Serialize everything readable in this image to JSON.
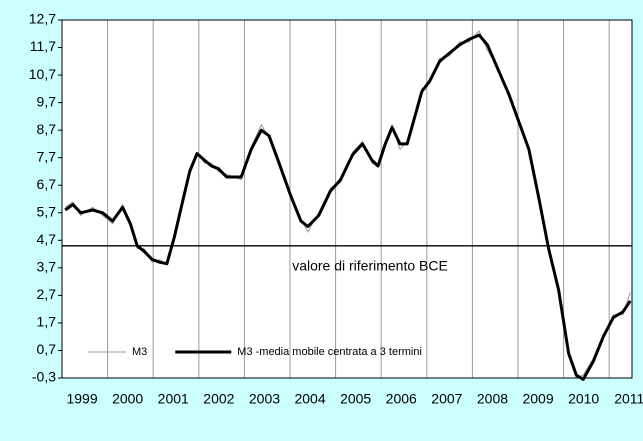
{
  "chart_data": {
    "type": "line",
    "xlim": [
      1999,
      2011.5
    ],
    "xticks": [
      1999,
      2000,
      2001,
      2002,
      2003,
      2004,
      2005,
      2006,
      2007,
      2008,
      2009,
      2010,
      2011
    ],
    "ylim": [
      -0.3,
      12.7
    ],
    "yticks": [
      {
        "value": -0.3,
        "label": "-0,3"
      },
      {
        "value": 0.7,
        "label": "0,7"
      },
      {
        "value": 1.7,
        "label": "1,7"
      },
      {
        "value": 2.7,
        "label": "2,7"
      },
      {
        "value": 3.7,
        "label": "3,7"
      },
      {
        "value": 4.7,
        "label": "4,7"
      },
      {
        "value": 5.7,
        "label": "5,7"
      },
      {
        "value": 6.7,
        "label": "6,7"
      },
      {
        "value": 7.7,
        "label": "7,7"
      },
      {
        "value": 8.7,
        "label": "8,7"
      },
      {
        "value": 9.7,
        "label": "9,7"
      },
      {
        "value": 10.7,
        "label": "10,7"
      },
      {
        "value": 11.7,
        "label": "11,7"
      },
      {
        "value": 12.7,
        "label": "12,7"
      }
    ],
    "grid": true,
    "legend": "lower left",
    "reference_line": {
      "value": 4.5,
      "label": "valore di riferimento BCE"
    },
    "x": [
      1999.07,
      1999.24,
      1999.41,
      1999.67,
      1999.89,
      2000.11,
      2000.33,
      2000.5,
      2000.65,
      2000.8,
      2000.98,
      2001.15,
      2001.3,
      2001.46,
      2001.63,
      2001.8,
      2001.96,
      2002.13,
      2002.28,
      2002.43,
      2002.61,
      2002.93,
      2003.15,
      2003.37,
      2003.54,
      2003.76,
      2004.02,
      2004.24,
      2004.39,
      2004.63,
      2004.89,
      2005.11,
      2005.37,
      2005.59,
      2005.8,
      2005.93,
      2006.09,
      2006.24,
      2006.41,
      2006.57,
      2006.74,
      2006.89,
      2007.07,
      2007.28,
      2007.5,
      2007.72,
      2007.93,
      2008.15,
      2008.33,
      2008.59,
      2008.8,
      2009.02,
      2009.24,
      2009.46,
      2009.67,
      2009.89,
      2010.11,
      2010.28,
      2010.43,
      2010.65,
      2010.87,
      2011.09,
      2011.3,
      2011.46
    ],
    "series": [
      {
        "name": "M3",
        "color": "#999999",
        "width": 1,
        "values": [
          5.9,
          6.1,
          5.6,
          5.9,
          5.6,
          5.3,
          6.0,
          5.2,
          4.4,
          4.4,
          3.9,
          4.0,
          3.8,
          4.9,
          5.9,
          7.3,
          7.9,
          7.5,
          7.5,
          7.2,
          7.1,
          6.9,
          8.1,
          8.9,
          8.4,
          7.6,
          6.2,
          5.5,
          5.0,
          5.7,
          6.6,
          6.8,
          7.9,
          8.3,
          7.5,
          7.4,
          8.3,
          8.9,
          8.0,
          8.3,
          9.1,
          10.2,
          10.4,
          11.3,
          11.4,
          11.9,
          11.9,
          12.3,
          11.6,
          10.9,
          9.9,
          9.1,
          7.9,
          6.3,
          4.3,
          3.0,
          0.5,
          -0.3,
          -0.2,
          0.4,
          1.1,
          2.0,
          2.0,
          2.8
        ]
      },
      {
        "name": "M3 -media mobile centrata a 3 termini",
        "color": "#000000",
        "width": 3,
        "values": [
          5.8,
          6.0,
          5.7,
          5.8,
          5.7,
          5.4,
          5.9,
          5.3,
          4.5,
          4.3,
          4.0,
          3.9,
          3.85,
          4.8,
          6.0,
          7.2,
          7.85,
          7.6,
          7.4,
          7.3,
          7.0,
          7.0,
          8.0,
          8.7,
          8.5,
          7.5,
          6.3,
          5.4,
          5.2,
          5.6,
          6.5,
          6.9,
          7.8,
          8.2,
          7.6,
          7.4,
          8.2,
          8.8,
          8.2,
          8.2,
          9.2,
          10.1,
          10.5,
          11.2,
          11.5,
          11.8,
          12.0,
          12.15,
          11.8,
          10.8,
          10.0,
          9.0,
          8.0,
          6.2,
          4.4,
          2.9,
          0.6,
          -0.2,
          -0.35,
          0.3,
          1.2,
          1.9,
          2.1,
          2.5
        ]
      }
    ]
  }
}
